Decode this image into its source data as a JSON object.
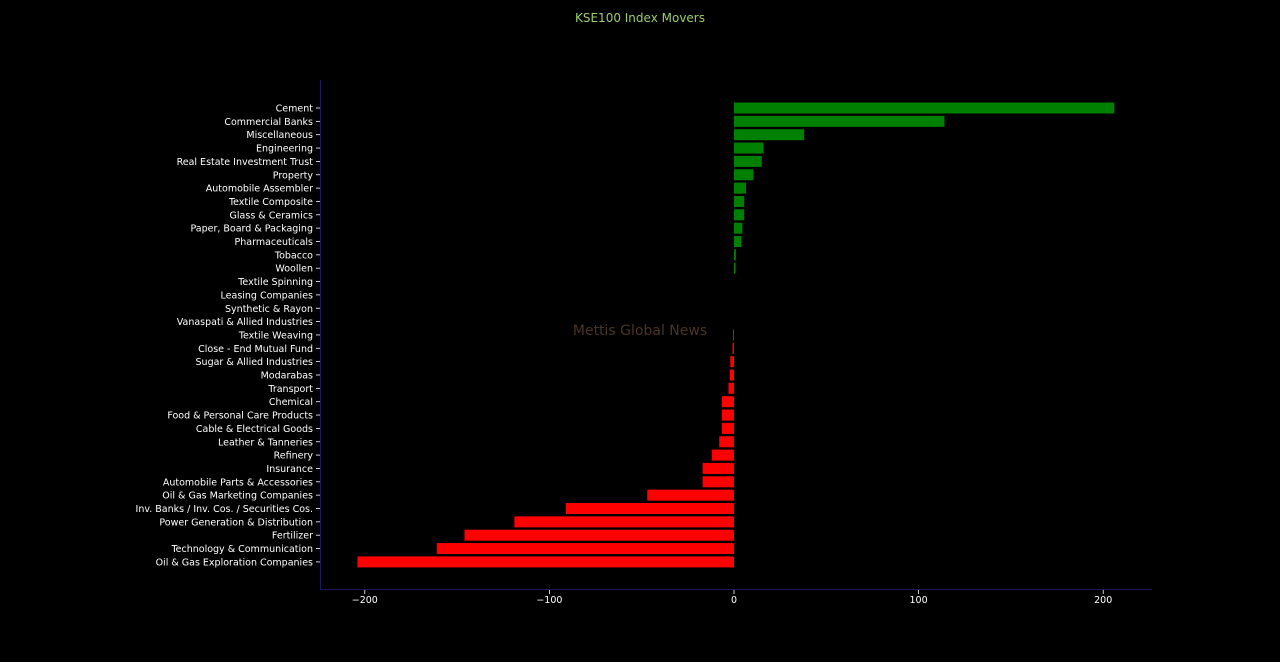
{
  "chart_data": {
    "type": "bar",
    "orientation": "horizontal",
    "title": "KSE100 Index Movers",
    "watermark": "Mettis Global News",
    "xlabel": "",
    "ylabel": "",
    "xlim": [
      -228,
      227
    ],
    "xticks": [
      -200,
      -100,
      0,
      100,
      200
    ],
    "xtick_labels": [
      "−200",
      "−100",
      "0",
      "100",
      "200"
    ],
    "grid": false,
    "legend": "none",
    "colors": {
      "positive": "#008000",
      "negative": "#ff0000",
      "background": "#000000",
      "title": "#9acd68",
      "axis": "#1a1a5e",
      "watermark": "#4a3426"
    },
    "categories": [
      "Cement",
      "Commercial Banks",
      "Miscellaneous",
      "Engineering",
      "Real Estate Investment Trust",
      "Property",
      "Automobile Assembler",
      "Textile Composite",
      "Glass & Ceramics",
      "Paper, Board & Packaging",
      "Pharmaceuticals",
      "Tobacco",
      "Woollen",
      "Textile Spinning",
      "Leasing Companies",
      "Synthetic & Rayon",
      "Vanaspati & Allied Industries",
      "Textile Weaving",
      "Close - End Mutual Fund",
      "Sugar & Allied Industries",
      "Modarabas",
      "Transport",
      "Chemical",
      "Food & Personal Care Products",
      "Cable & Electrical Goods",
      "Leather & Tanneries",
      "Refinery",
      "Insurance",
      "Automobile Parts & Accessories",
      "Oil & Gas Marketing Companies",
      "Inv. Banks / Inv. Cos. / Securities Cos.",
      "Power Generation & Distribution",
      "Fertilizer",
      "Technology & Communication",
      "Oil & Gas Exploration Companies"
    ],
    "values": [
      206,
      114,
      38,
      16,
      15,
      10.5,
      6.5,
      5.5,
      5.5,
      4.5,
      4,
      1,
      0.8,
      0,
      0,
      0,
      0,
      -0.5,
      -0.8,
      -2,
      -2.2,
      -3,
      -6.5,
      -6.5,
      -6.5,
      -8,
      -12,
      -17,
      -17,
      -47,
      -91,
      -119,
      -146,
      -161,
      -204
    ]
  }
}
